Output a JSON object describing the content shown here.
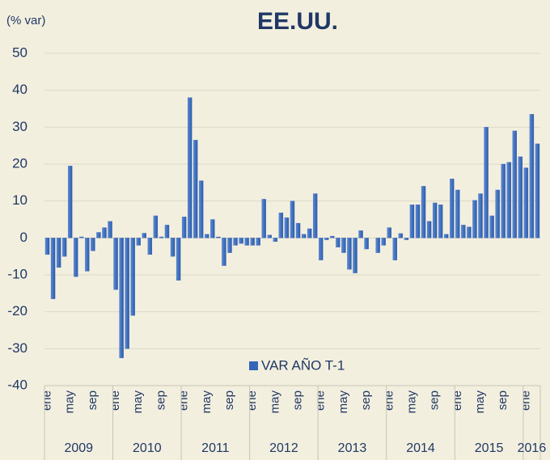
{
  "chart_data": {
    "type": "bar",
    "title": "EE.UU.",
    "y_label": "(% var)",
    "series": [
      {
        "name": "VAR AÑO T-1",
        "color": "#3566b8",
        "values": [
          -4.5,
          -16.5,
          -8,
          -5,
          19.5,
          -10.5,
          0.3,
          -9,
          -3.5,
          1.5,
          2.8,
          4.5,
          -14,
          -32.5,
          -30,
          -21,
          -2,
          1.3,
          -4.5,
          6,
          0.3,
          3.5,
          -5,
          -11.5,
          5.7,
          38,
          26.5,
          15.5,
          1,
          5,
          0.3,
          -7.5,
          -4,
          -2,
          -1.5,
          -2,
          -2,
          -2,
          10.5,
          0.8,
          -1,
          6.8,
          5.5,
          10,
          4,
          1,
          2.5,
          12,
          -6,
          -0.5,
          0.5,
          -2.5,
          -4,
          -8.5,
          -9.5,
          2,
          -3,
          0,
          -4,
          -2,
          2.8,
          -6,
          1.2,
          -0.5,
          9,
          9,
          14,
          4.5,
          9.5,
          9,
          1,
          16,
          13,
          3.5,
          3,
          10.2,
          12,
          30,
          6,
          13,
          20,
          20.5,
          29,
          22,
          19,
          33.5,
          25.5
        ]
      }
    ],
    "categories": [
      "ene",
      null,
      null,
      null,
      "may",
      null,
      null,
      null,
      "sep",
      null,
      null,
      null,
      "ene",
      null,
      null,
      null,
      "may",
      null,
      null,
      null,
      "sep",
      null,
      null,
      null,
      "ene",
      null,
      null,
      null,
      "may",
      null,
      null,
      null,
      "sep",
      null,
      null,
      null,
      "ene",
      null,
      null,
      null,
      "may",
      null,
      null,
      null,
      "sep",
      null,
      null,
      null,
      "ene",
      null,
      null,
      null,
      "may",
      null,
      null,
      null,
      "sep",
      null,
      null,
      null,
      "ene",
      null,
      null,
      null,
      "may",
      null,
      null,
      null,
      "sep",
      null,
      null,
      null,
      "ene",
      null,
      null,
      null,
      "may",
      null,
      null,
      null,
      "sep",
      null,
      null,
      null,
      "ene",
      null,
      null
    ],
    "years": [
      "2009",
      "2010",
      "2011",
      "2012",
      "2013",
      "2014",
      "2015",
      "2016"
    ],
    "ylim": [
      -40,
      50
    ],
    "yticks": [
      -40,
      -30,
      -20,
      -10,
      0,
      10,
      20,
      30,
      40,
      50
    ],
    "grid": true
  }
}
